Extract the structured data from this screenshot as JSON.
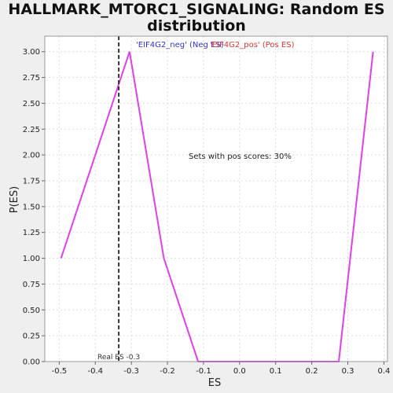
{
  "title_lines": [
    "HALLMARK_MTORC1_SIGNALING: Random ES",
    "distribution"
  ],
  "chart_data": {
    "type": "line",
    "title": "HALLMARK_MTORC1_SIGNALING: Random ES distribution",
    "xlabel": "ES",
    "ylabel": "P(ES)",
    "xlim": [
      -0.54,
      0.41
    ],
    "ylim": [
      0,
      3.15
    ],
    "xticks": [
      -0.5,
      -0.4,
      -0.3,
      -0.2,
      -0.1,
      0.0,
      0.1,
      0.2,
      0.3,
      0.4
    ],
    "xtick_labels": [
      "-0.5",
      "-0.4",
      "-0.3",
      "-0.2",
      "-0.1",
      "0.0",
      "0.1",
      "0.2",
      "0.3",
      "0.4"
    ],
    "yticks": [
      0,
      0.25,
      0.5,
      0.75,
      1.0,
      1.25,
      1.5,
      1.75,
      2.0,
      2.25,
      2.5,
      2.75,
      3.0
    ],
    "ytick_labels": [
      "0.00",
      "0.25",
      "0.50",
      "0.75",
      "1.00",
      "1.25",
      "1.50",
      "1.75",
      "2.00",
      "2.25",
      "2.50",
      "2.75",
      "3.00"
    ],
    "grid": true,
    "series": [
      {
        "color": "#e040e8",
        "x": [
          -0.495,
          -0.305,
          -0.21,
          -0.115,
          0.275,
          0.37
        ],
        "y": [
          1.0,
          3.0,
          1.0,
          0.0,
          0.0,
          3.0
        ]
      }
    ],
    "real_es": {
      "x": -0.335,
      "label": "Real ES -0.3",
      "color": "#333333"
    },
    "annotations": {
      "neg_label": "'EIF4G2_neg' (Neg ES)",
      "neg_color": "#3333cc",
      "pos_label": "'EIF4G2_pos' (Pos ES)",
      "pos_color": "#dd3333",
      "pos_score_text": "Sets with pos scores: 30%"
    }
  }
}
